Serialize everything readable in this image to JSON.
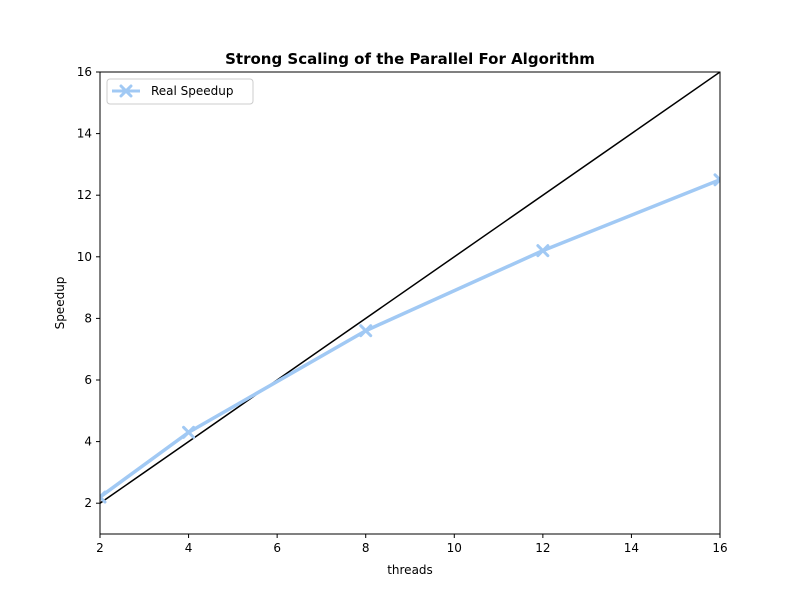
{
  "chart_data": {
    "type": "line",
    "title": "Strong Scaling of the Parallel For Algorithm",
    "xlabel": "threads",
    "ylabel": "Speedup",
    "xlim": [
      2,
      16
    ],
    "ylim": [
      1,
      16
    ],
    "xticks": [
      2,
      4,
      6,
      8,
      10,
      12,
      14,
      16
    ],
    "yticks": [
      2,
      4,
      6,
      8,
      10,
      12,
      14,
      16
    ],
    "grid": false,
    "legend_position": "top-left",
    "series": [
      {
        "name": "Real Speedup",
        "color": "#a1c9f4",
        "marker": "x",
        "x": [
          2,
          4,
          8,
          12,
          16
        ],
        "y": [
          2.2,
          4.3,
          7.6,
          10.2,
          12.5
        ]
      }
    ],
    "reference_line": {
      "color": "#000000",
      "x": [
        2,
        16
      ],
      "y": [
        2,
        16
      ]
    }
  }
}
